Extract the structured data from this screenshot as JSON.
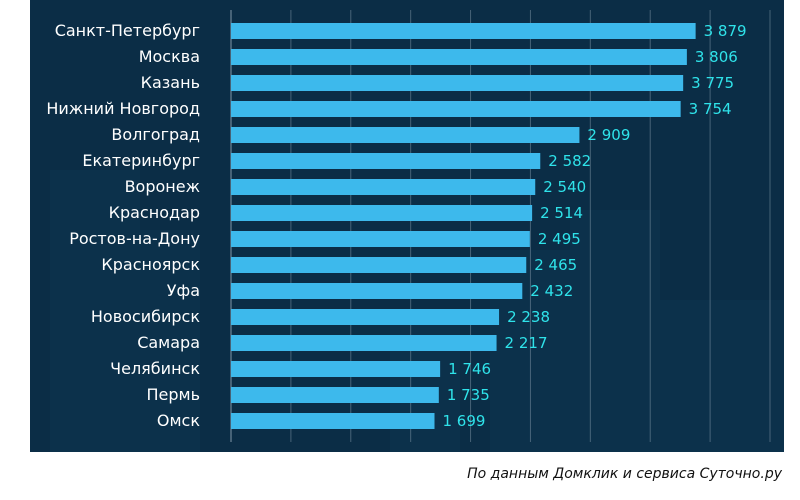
{
  "chart_data": {
    "type": "bar",
    "orientation": "horizontal",
    "categories": [
      "Санкт-Петербург",
      "Москва",
      "Казань",
      "Нижний Новгород",
      "Волгоград",
      "Екатеринбург",
      "Воронеж",
      "Краснодар",
      "Ростов-на-Дону",
      "Красноярск",
      "Уфа",
      "Новосибирск",
      "Самара",
      "Челябинск",
      "Пермь",
      "Омск"
    ],
    "values": [
      3879,
      3806,
      3775,
      3754,
      2909,
      2582,
      2540,
      2514,
      2495,
      2465,
      2432,
      2238,
      2217,
      1746,
      1735,
      1699
    ],
    "value_labels": [
      "3 879",
      "3 806",
      "3 775",
      "3 754",
      "2 909",
      "2 582",
      "2 540",
      "2 514",
      "2 495",
      "2 465",
      "2 432",
      "2 238",
      "2 217",
      "1 746",
      "1 735",
      "1 699"
    ],
    "xlim": [
      0,
      4500
    ],
    "grid": true,
    "legend": "none"
  },
  "colors": {
    "background": "#0b2d46",
    "bar": "#3db9ec",
    "value_text": "#2fe3ea",
    "category_text": "#ffffff",
    "grid": "#8fa3b3"
  },
  "source_note": "По данным Домклик и сервиса Суточно.ру"
}
